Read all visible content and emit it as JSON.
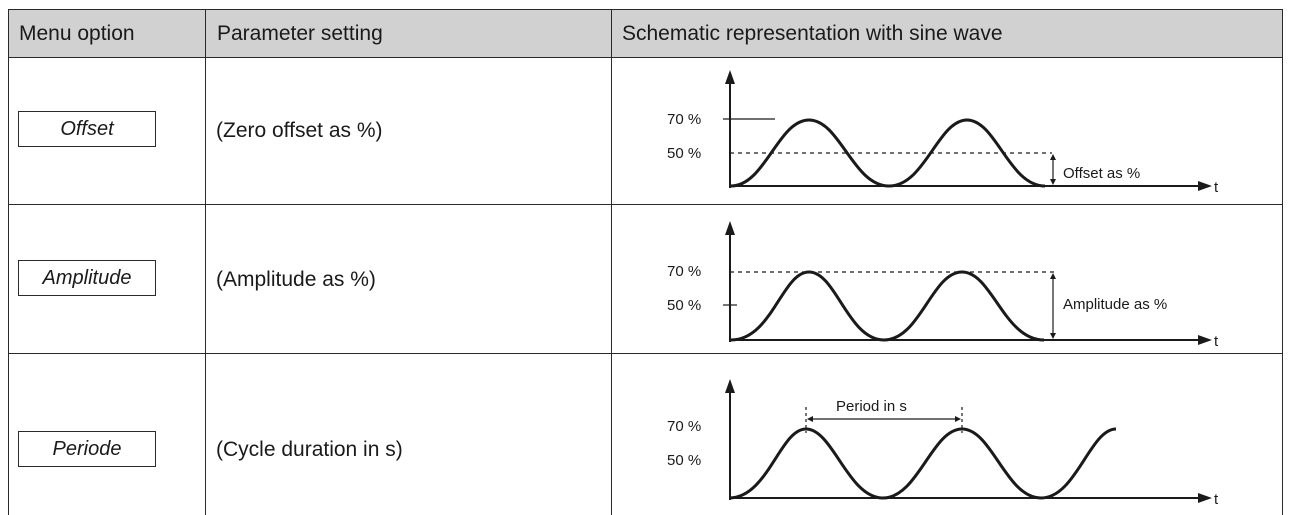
{
  "header": {
    "col1": "Menu option",
    "col2": "Parameter setting",
    "col3": "Schematic representation with sine wave"
  },
  "rows": [
    {
      "menu": "Offset",
      "param": "(Zero offset as %)",
      "diagram": {
        "y_upper": "70 %",
        "y_lower": "50 %",
        "annotation": "Offset as %",
        "axis": "t"
      }
    },
    {
      "menu": "Amplitude",
      "param": "(Amplitude as %)",
      "diagram": {
        "y_upper": "70 %",
        "y_lower": "50 %",
        "annotation": "Amplitude as %",
        "axis": "t"
      }
    },
    {
      "menu": "Periode",
      "param": "(Cycle duration in s)",
      "diagram": {
        "y_upper": "70 %",
        "y_lower": "50 %",
        "annotation": "Period in s",
        "axis": "t"
      }
    }
  ]
}
